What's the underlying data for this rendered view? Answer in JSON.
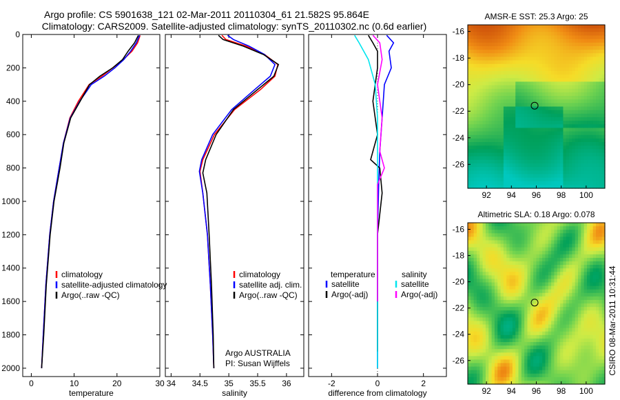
{
  "title_line1": "Argo profile: CS 5901638_121 02-Mar-2011 20110304_61 21.582S 95.864E",
  "title_line2": "Climatology: CARS2009. Satellite-adjusted climatology: synTS_20110302.nc (0.6d earlier)",
  "side_label": "CSIRO 08-Mar-2011 10:31:44",
  "colors": {
    "red": "#ff0000",
    "blue": "#0000ff",
    "black": "#000000",
    "cyan": "#00e5ee",
    "magenta": "#ff00ff"
  },
  "chart_data": [
    {
      "type": "line",
      "xlabel": "temperature",
      "xlim": [
        -2,
        30
      ],
      "ylim": [
        2050,
        0
      ],
      "xticks": [
        0,
        10,
        20,
        30
      ],
      "yticks": [
        0,
        200,
        400,
        600,
        800,
        1000,
        1200,
        1400,
        1600,
        1800,
        2000
      ],
      "legend": [
        "climatology",
        "satellite-adjusted climatology",
        "Argo(..raw -QC)"
      ],
      "series": [
        {
          "name": "climatology",
          "color": "red",
          "x": [
            25.4,
            25.2,
            24.8,
            23.5,
            21.5,
            19,
            16.5,
            13.5,
            11,
            9,
            7.5,
            6.5,
            5.2,
            4.3,
            3.4,
            2.8,
            2.4
          ],
          "y": [
            5,
            20,
            50,
            100,
            150,
            200,
            250,
            300,
            400,
            500,
            650,
            800,
            1000,
            1200,
            1500,
            1800,
            2000
          ]
        },
        {
          "name": "satellite-adjusted climatology",
          "color": "blue",
          "x": [
            25.3,
            25.0,
            24.5,
            23.2,
            21.6,
            19.5,
            17,
            14,
            11.3,
            9.1,
            7.5,
            6.5,
            5.2,
            4.3,
            3.4,
            2.8,
            2.4
          ],
          "y": [
            5,
            20,
            50,
            100,
            150,
            200,
            250,
            300,
            400,
            500,
            650,
            800,
            1000,
            1200,
            1500,
            1800,
            2000
          ]
        },
        {
          "name": "Argo(..raw -QC)",
          "color": "black",
          "x": [
            25.0,
            24.7,
            24.1,
            23.2,
            22.6,
            21.3,
            19.0,
            16.0,
            13.6,
            11.4,
            9.2,
            7.6,
            6.7,
            5.3,
            4.4,
            3.5,
            2.9,
            2.4
          ],
          "y": [
            5,
            20,
            50,
            80,
            100,
            150,
            200,
            250,
            300,
            400,
            500,
            650,
            800,
            1000,
            1200,
            1500,
            1800,
            2000
          ]
        }
      ]
    },
    {
      "type": "line",
      "xlabel": "salinity",
      "xlim": [
        33.9,
        36.3
      ],
      "ylim": [
        2050,
        0
      ],
      "xticks": [
        34,
        34.5,
        35,
        35.5,
        36
      ],
      "legend": [
        "climatology",
        "satellite adj. clim.",
        "Argo(..raw -QC)"
      ],
      "annotations": [
        "Argo AUSTRALIA",
        "PI: Susan Wijffels"
      ],
      "series": [
        {
          "name": "climatology",
          "color": "red",
          "x": [
            34.88,
            34.95,
            35.3,
            35.62,
            35.85,
            35.8,
            35.55,
            35.1,
            34.75,
            34.55,
            34.5,
            34.55,
            34.63,
            34.68,
            34.72,
            34.74
          ],
          "y": [
            5,
            30,
            70,
            120,
            180,
            250,
            330,
            450,
            600,
            750,
            820,
            950,
            1200,
            1500,
            1800,
            2000
          ]
        },
        {
          "name": "satellite adj. clim.",
          "color": "blue",
          "x": [
            34.98,
            35.08,
            35.35,
            35.62,
            35.8,
            35.72,
            35.45,
            35.05,
            34.72,
            34.53,
            34.49,
            34.55,
            34.63,
            34.68,
            34.72,
            34.74
          ],
          "y": [
            5,
            30,
            70,
            120,
            180,
            250,
            330,
            450,
            600,
            750,
            820,
            950,
            1200,
            1500,
            1800,
            2000
          ]
        },
        {
          "name": "Argo(..raw -QC)",
          "color": "black",
          "x": [
            34.82,
            34.9,
            35.25,
            35.6,
            35.86,
            35.78,
            35.5,
            35.08,
            34.78,
            34.6,
            34.55,
            34.62,
            34.66,
            34.7,
            34.73,
            34.74
          ],
          "y": [
            5,
            30,
            70,
            120,
            180,
            250,
            330,
            450,
            600,
            750,
            830,
            950,
            1200,
            1500,
            1800,
            2000
          ]
        }
      ]
    },
    {
      "type": "line",
      "xlabel": "difference from climatology",
      "xlim": [
        -3,
        3
      ],
      "ylim": [
        2050,
        0
      ],
      "xticks": [
        -2,
        0,
        2
      ],
      "legend": [
        "temperature",
        "satellite",
        "Argo(-adj)",
        "salinity",
        "satellite",
        "Argo(-adj)"
      ],
      "series": [
        {
          "name": "temperature satellite",
          "color": "blue",
          "x": [
            0.4,
            0.7,
            0.5,
            0.6,
            0.3,
            0.2,
            0.1,
            0.05,
            0.0,
            0.0,
            0.0
          ],
          "y": [
            5,
            50,
            100,
            200,
            300,
            500,
            700,
            900,
            1200,
            1600,
            2000
          ]
        },
        {
          "name": "temperature Argo(-adj)",
          "color": "black",
          "x": [
            -0.4,
            -0.2,
            0.0,
            0.0,
            -0.2,
            0.0,
            -0.3,
            0.1,
            0.2,
            0.0,
            0.0
          ],
          "y": [
            5,
            50,
            100,
            200,
            400,
            600,
            750,
            800,
            950,
            1200,
            1900
          ]
        },
        {
          "name": "salinity satellite",
          "color": "cyan",
          "x": [
            -1.0,
            -0.8,
            -0.4,
            -0.1,
            0.0,
            0.0,
            0.0
          ],
          "y": [
            5,
            50,
            150,
            300,
            500,
            1000,
            2000
          ]
        },
        {
          "name": "salinity Argo(-adj)",
          "color": "magenta",
          "x": [
            -0.2,
            0.1,
            0.2,
            0.0,
            0.2,
            0.1,
            0.3,
            0.0,
            0.0,
            0.0
          ],
          "y": [
            5,
            50,
            150,
            300,
            500,
            700,
            800,
            900,
            1200,
            1600
          ]
        }
      ]
    },
    {
      "type": "heatmap",
      "title": "AMSR-E SST: 25.3 Argo: 25",
      "xlim": [
        90.5,
        101.5
      ],
      "ylim": [
        -27.8,
        -15.5
      ],
      "xticks": [
        92,
        94,
        96,
        98,
        100
      ],
      "yticks": [
        -16,
        -18,
        -20,
        -22,
        -24,
        -26
      ],
      "marker": {
        "x": 95.864,
        "y": -21.582
      }
    },
    {
      "type": "heatmap",
      "title": "Altimetric SLA: 0.18 Argo: 0.078",
      "xlim": [
        90.5,
        101.5
      ],
      "ylim": [
        -27.8,
        -15.5
      ],
      "xticks": [
        92,
        94,
        96,
        98,
        100
      ],
      "yticks": [
        -16,
        -18,
        -20,
        -22,
        -24,
        -26
      ],
      "marker": {
        "x": 95.864,
        "y": -21.582
      }
    }
  ]
}
